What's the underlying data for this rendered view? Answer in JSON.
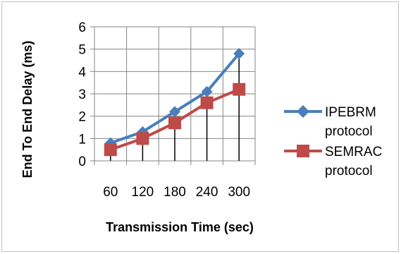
{
  "chart_data": {
    "type": "line",
    "categories": [
      "60",
      "120",
      "180",
      "240",
      "300"
    ],
    "series": [
      {
        "name": "IPEBRM protocol",
        "values": [
          0.8,
          1.3,
          2.2,
          3.1,
          4.8
        ],
        "color": "#4a7ebb",
        "marker": "diamond"
      },
      {
        "name": "SEMRAC protocol",
        "values": [
          0.5,
          1.0,
          1.7,
          2.6,
          3.2
        ],
        "color": "#be4b48",
        "marker": "square"
      }
    ],
    "xlabel": "Transmission Time (sec)",
    "ylabel": "End To End Delay (ms)",
    "ylim": [
      0,
      6
    ],
    "yticks": [
      "0",
      "1",
      "2",
      "3",
      "4",
      "5",
      "6"
    ],
    "grid": true,
    "drop_lines": true,
    "legend_position": "right",
    "legend_labels": [
      [
        "IPEBRM",
        "protocol"
      ],
      [
        "SEMRAC",
        "protocol"
      ]
    ]
  }
}
